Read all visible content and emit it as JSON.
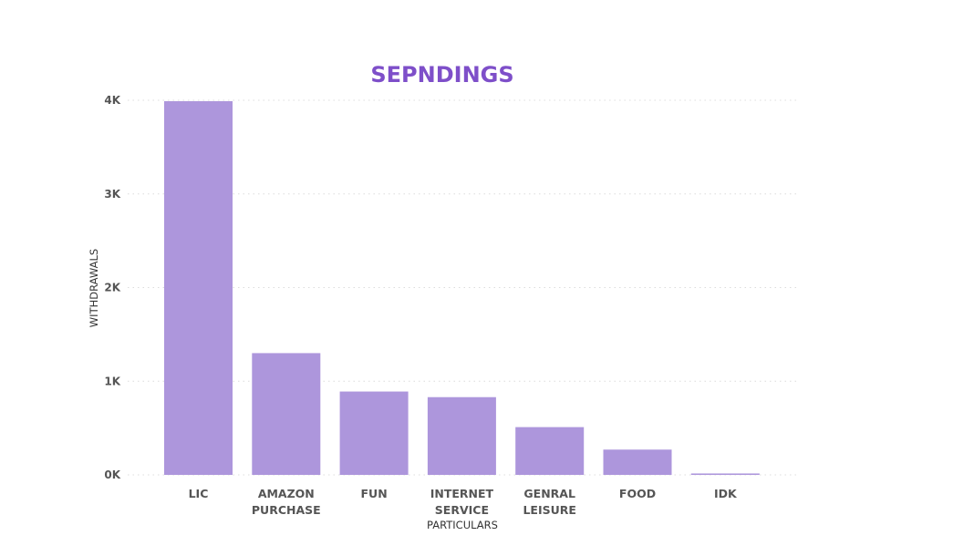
{
  "chart_data": {
    "type": "bar",
    "title": "SEPNDINGS",
    "xlabel": "PARTICULARS",
    "ylabel": "WITHDRAWALS",
    "categories": [
      [
        "LIC"
      ],
      [
        "AMAZON",
        "PURCHASE"
      ],
      [
        "FUN"
      ],
      [
        "INTERNET",
        "SERVICE"
      ],
      [
        "GENRAL",
        "LEISURE"
      ],
      [
        "FOOD"
      ],
      [
        "IDK"
      ]
    ],
    "values": [
      3990,
      1300,
      890,
      830,
      510,
      270,
      15
    ],
    "ylim": [
      0,
      4000
    ],
    "yticks": [
      {
        "value": 0,
        "label": "0K"
      },
      {
        "value": 1000,
        "label": "1K"
      },
      {
        "value": 2000,
        "label": "2K"
      },
      {
        "value": 3000,
        "label": "3K"
      },
      {
        "value": 4000,
        "label": "4K"
      }
    ],
    "grid": true,
    "legend": "none",
    "bar_color": "#ad96dc",
    "title_color": "#7e4fc9"
  }
}
